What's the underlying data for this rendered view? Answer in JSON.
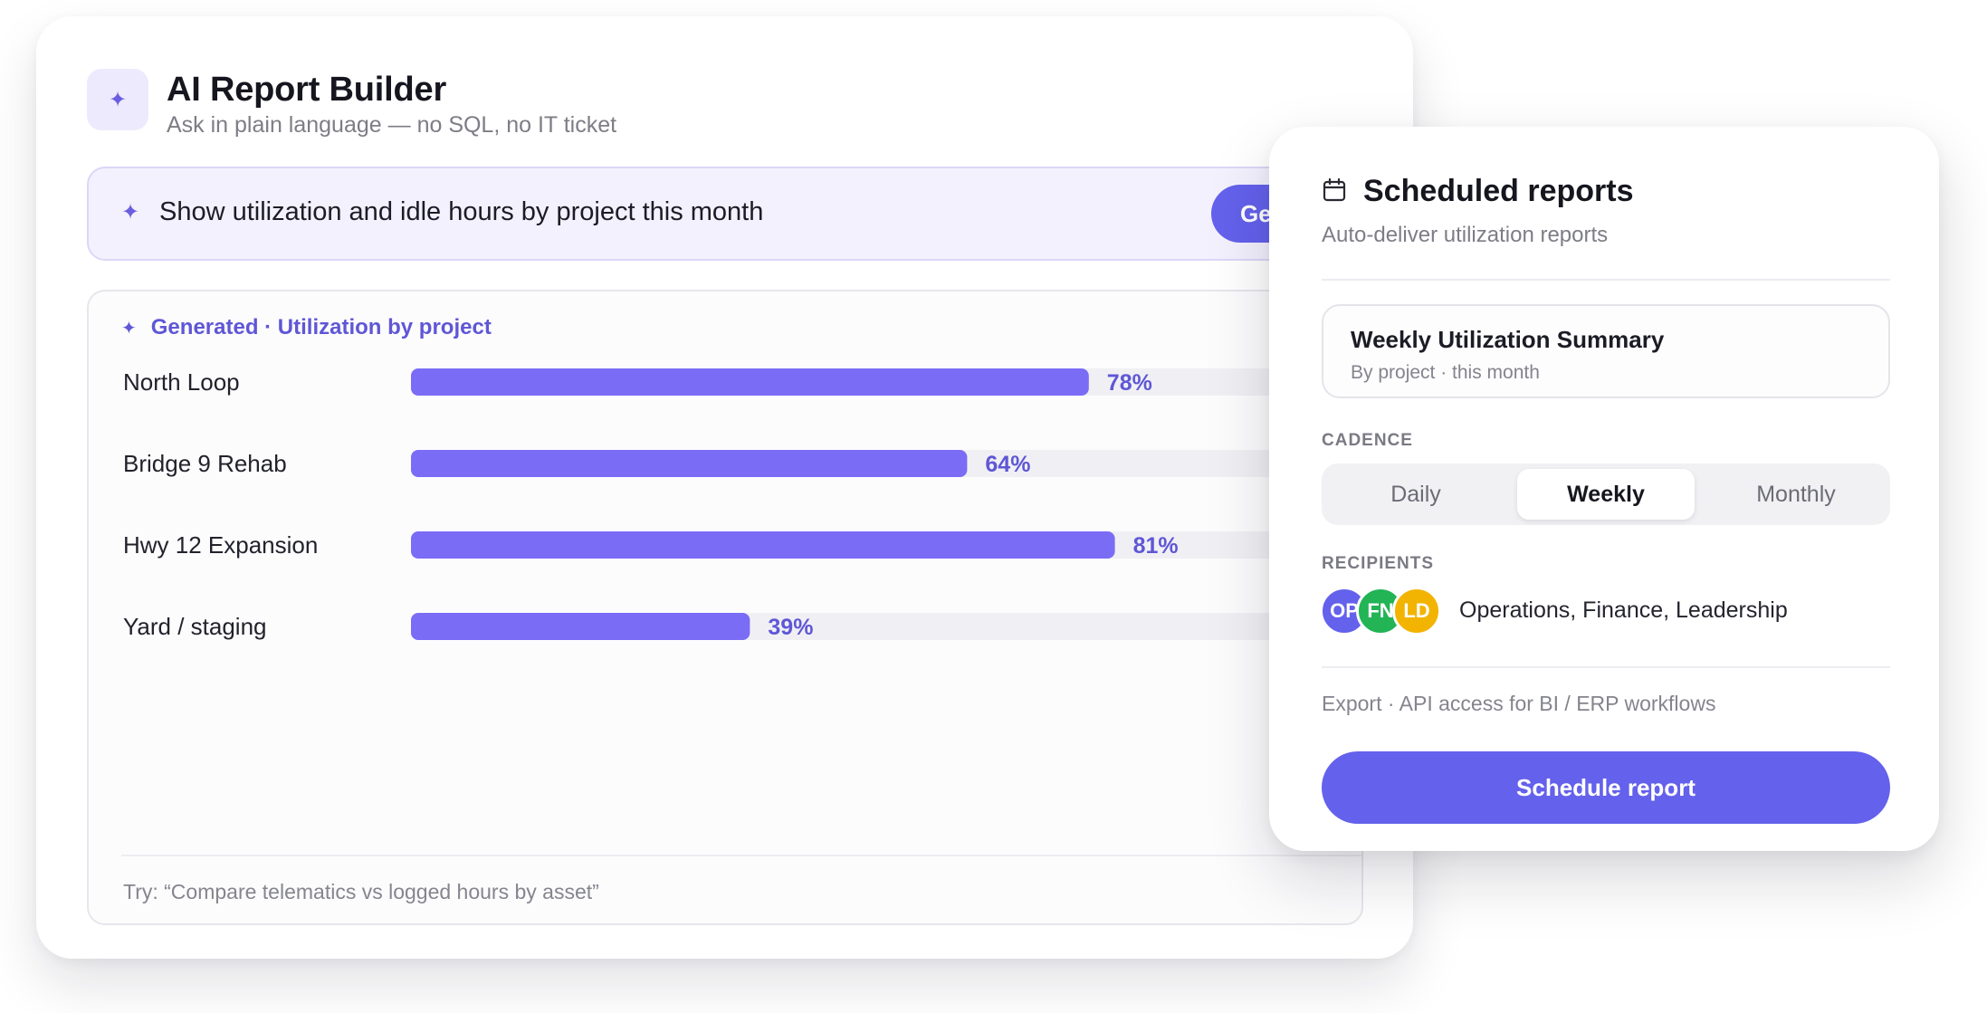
{
  "builder": {
    "title": "AI Report Builder",
    "subtitle": "Ask in plain language — no SQL, no IT ticket",
    "prompt": "Show utilization and idle hours by project this month",
    "generate_label": "Generate",
    "result_header": "Generated · Utilization by project",
    "try_hint": "Try: “Compare telematics vs logged hours by asset”"
  },
  "chart_data": {
    "type": "bar",
    "orientation": "horizontal",
    "categories": [
      "North Loop",
      "Bridge 9 Rehab",
      "Hwy 12 Expansion",
      "Yard / staging"
    ],
    "values": [
      78,
      64,
      81,
      39
    ],
    "value_labels": [
      "78%",
      "64%",
      "81%",
      "39%"
    ],
    "unit": "%",
    "xlim": [
      0,
      100
    ],
    "title": "Utilization by project",
    "bar_color": "#7b6cf6",
    "track_color": "#f0f0f4",
    "label_color": "#5f57d6"
  },
  "schedule": {
    "title": "Scheduled reports",
    "subtitle": "Auto-deliver utilization reports",
    "report_name": "Weekly Utilization Summary",
    "report_desc": "By project · this month",
    "cadence_label": "CADENCE",
    "cadence_options": [
      "Daily",
      "Weekly",
      "Monthly"
    ],
    "cadence_selected": "Weekly",
    "recipients_label": "RECIPIENTS",
    "avatars": [
      {
        "initials": "OP",
        "color": "#6461ec"
      },
      {
        "initials": "FN",
        "color": "#22b455"
      },
      {
        "initials": "LD",
        "color": "#f2b400"
      }
    ],
    "recipients_text": "Operations, Finance, Leadership",
    "export_note": "Export · API access for BI / ERP workflows",
    "button_label": "Schedule report"
  },
  "colors": {
    "accent": "#6461ec",
    "accent_soft": "#f3f1fd"
  },
  "icons": {
    "sparkle": "sparkle-icon",
    "calendar": "calendar-icon"
  }
}
